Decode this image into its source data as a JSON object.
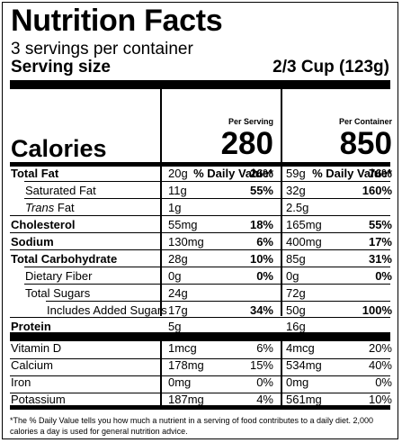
{
  "title": "Nutrition Facts",
  "servings_per_container": "3 servings per container",
  "serving_size_label": "Serving size",
  "serving_size_value": "2/3 Cup (123g)",
  "per_serving_header": "Per Serving",
  "per_container_header": "Per Container",
  "calories_label": "Calories",
  "calories_per_serving": "280",
  "calories_per_container": "850",
  "daily_value_header": "% Daily Value*",
  "nutrients": [
    {
      "label": "Total Fat",
      "serving": "20g",
      "serving_dv": "26%",
      "container": "59g",
      "container_dv": "76%"
    },
    {
      "label": "Saturated Fat",
      "serving": "11g",
      "serving_dv": "55%",
      "container": "32g",
      "container_dv": "160%"
    },
    {
      "label_italic": "Trans",
      "label_rest": " Fat",
      "serving": "1g",
      "serving_dv": "",
      "container": "2.5g",
      "container_dv": ""
    },
    {
      "label": "Cholesterol",
      "serving": "55mg",
      "serving_dv": "18%",
      "container": "165mg",
      "container_dv": "55%"
    },
    {
      "label": "Sodium",
      "serving": "130mg",
      "serving_dv": "6%",
      "container": "400mg",
      "container_dv": "17%"
    },
    {
      "label": "Total Carbohydrate",
      "serving": "28g",
      "serving_dv": "10%",
      "container": "85g",
      "container_dv": "31%"
    },
    {
      "label": "Dietary Fiber",
      "serving": "0g",
      "serving_dv": "0%",
      "container": "0g",
      "container_dv": "0%"
    },
    {
      "label": "Total Sugars",
      "serving": "24g",
      "serving_dv": "",
      "container": "72g",
      "container_dv": ""
    },
    {
      "label": "Includes Added Sugars",
      "serving": "17g",
      "serving_dv": "34%",
      "container": "50g",
      "container_dv": "100%"
    },
    {
      "label": "Protein",
      "serving": "5g",
      "serving_dv": "",
      "container": "16g",
      "container_dv": ""
    }
  ],
  "vitamins": [
    {
      "label": "Vitamin D",
      "serving": "1mcg",
      "serving_dv": "6%",
      "container": "4mcg",
      "container_dv": "20%"
    },
    {
      "label": "Calcium",
      "serving": "178mg",
      "serving_dv": "15%",
      "container": "534mg",
      "container_dv": "40%"
    },
    {
      "label": "Iron",
      "serving": "0mg",
      "serving_dv": "0%",
      "container": "0mg",
      "container_dv": "0%"
    },
    {
      "label": "Potassium",
      "serving": "187mg",
      "serving_dv": "4%",
      "container": "561mg",
      "container_dv": "10%"
    }
  ],
  "footnote": "*The % Daily Value tells you how much a nutrient in a serving of food contributes to a daily diet. 2,000 calories a day is used for general nutrition advice."
}
